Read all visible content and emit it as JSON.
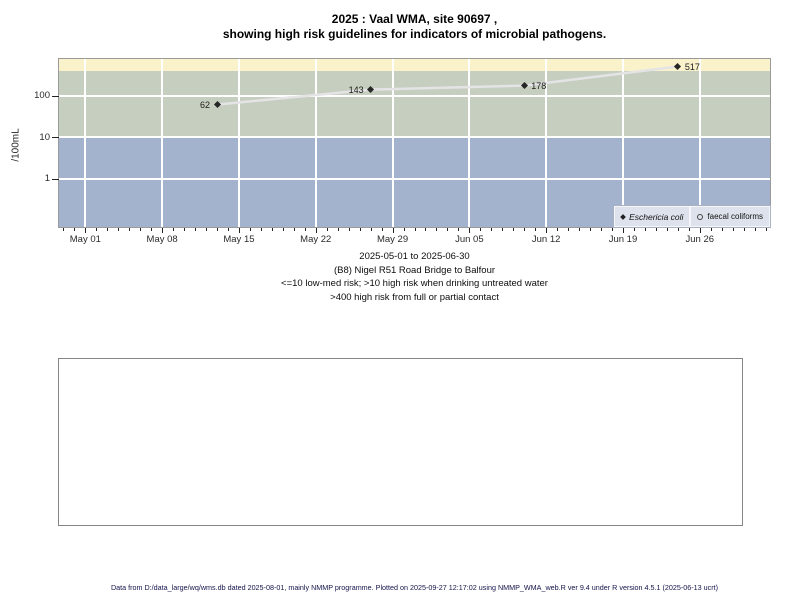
{
  "title": {
    "line1": "2025 : Vaal WMA, site 90697 ,",
    "line2": "showing high risk guidelines for indicators of microbial pathogens."
  },
  "y_axis": {
    "label": "/100mL",
    "ticks": [
      {
        "text": "100",
        "value": 100
      },
      {
        "text": "10",
        "value": 10
      },
      {
        "text": "1",
        "value": 1
      }
    ]
  },
  "x_axis": {
    "ticks": [
      {
        "text": "May 01",
        "day": 0
      },
      {
        "text": "May 08",
        "day": 7
      },
      {
        "text": "May 15",
        "day": 14
      },
      {
        "text": "May 22",
        "day": 21
      },
      {
        "text": "May 29",
        "day": 28
      },
      {
        "text": "Jun 05",
        "day": 35
      },
      {
        "text": "Jun 12",
        "day": 42
      },
      {
        "text": "Jun 19",
        "day": 49
      },
      {
        "text": "Jun 26",
        "day": 56
      }
    ],
    "minor_tick_days": {
      "start": -2,
      "end": 62
    }
  },
  "legend": {
    "ecoli_label": "Eschericia coli",
    "faecal_label": "faecal coliforms"
  },
  "caption": {
    "line1": "2025-05-01 to 2025-06-30",
    "line2": "(B8) Nigel R51 Road Bridge to Balfour",
    "line3": "<=10 low-med risk; >10 high risk when drinking untreated water",
    "line4": ">400 high risk from full or partial contact"
  },
  "footer": "Data from D:/data_large/wq/wms.db dated 2025-08-01, mainly NMMP programme. Plotted on 2025-09-27 12:17:02 using NMMP_WMA_web.R ver 9.4 under R version 4.5.1 (2025-06-13 ucrt)",
  "chart_data": {
    "type": "line",
    "title": "2025 : Vaal WMA, site 90697 , showing high risk guidelines for indicators of microbial pathogens.",
    "ylabel": "/100mL",
    "y_scale": "log10",
    "ylim": [
      0.067,
      787
    ],
    "x_days_range": [
      -2.4,
      62.4
    ],
    "date_range_shown": [
      "2025-05-01",
      "2025-06-30"
    ],
    "grid": "white major gridlines, weekly vertical + decade horizontal",
    "legend_position": "bottom-right inside plot",
    "y_gridline_values": [
      100,
      10,
      1
    ],
    "series": [
      {
        "name": "Eschericia coli",
        "marker": "filled-diamond",
        "line_color": "#e4e4e6",
        "marker_color": "#262626",
        "points": [
          {
            "date": "2025-05-13",
            "day": 12,
            "value": 62,
            "label": "62",
            "label_side": "left"
          },
          {
            "date": "2025-05-27",
            "day": 26,
            "value": 143,
            "label": "143",
            "label_side": "left"
          },
          {
            "date": "2025-06-10",
            "day": 40,
            "value": 178,
            "label": "178",
            "label_side": "right"
          },
          {
            "date": "2025-06-24",
            "day": 54,
            "value": 517,
            "label": "517",
            "label_side": "right"
          }
        ]
      },
      {
        "name": "faecal coliforms",
        "marker": "open-circle",
        "points": []
      }
    ],
    "bands": [
      {
        "name": "high risk from full or partial contact (>400)",
        "from": 400,
        "to": 787,
        "color": "#f9f2cb"
      },
      {
        "name": "high risk when drinking untreated water (>10)",
        "from": 10,
        "to": 400,
        "color": "#c6cebf"
      },
      {
        "name": "low-med risk (<=10)",
        "from": 0.067,
        "to": 10,
        "color": "#a3b3cd"
      }
    ]
  }
}
